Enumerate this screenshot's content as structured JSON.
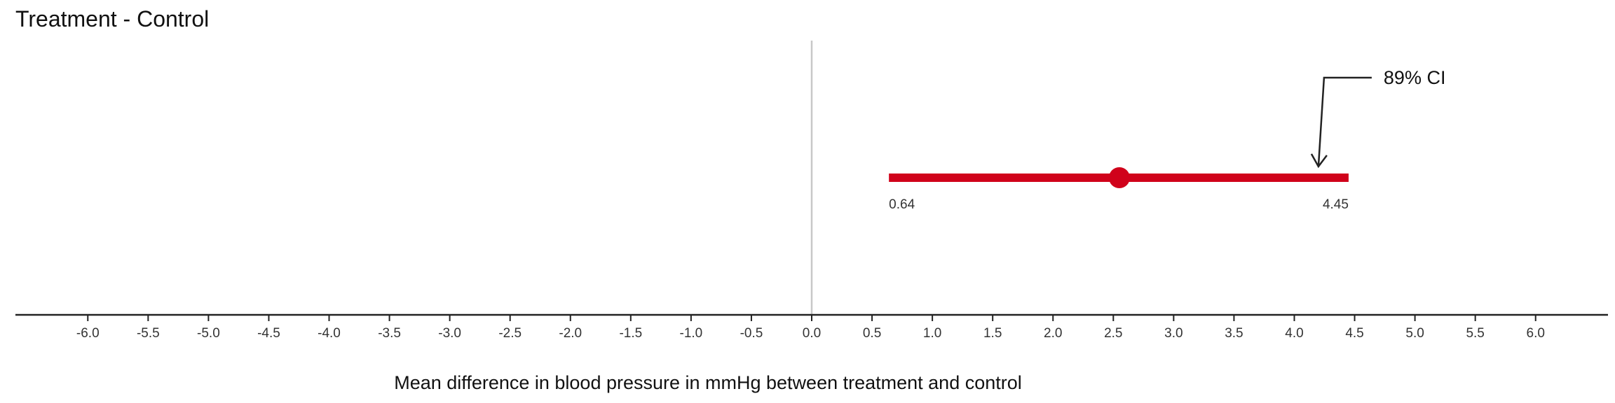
{
  "chart_data": {
    "type": "interval",
    "title": "Treatment - Control",
    "xlabel": "Mean difference in blood pressure in mmHg between treatment and control",
    "ylabel": "",
    "xlim": [
      -6.6,
      6.6
    ],
    "xticks": [
      -6.0,
      -5.5,
      -5.0,
      -4.5,
      -4.0,
      -3.5,
      -3.0,
      -2.5,
      -2.0,
      -1.5,
      -1.0,
      -0.5,
      0.0,
      0.5,
      1.0,
      1.5,
      2.0,
      2.5,
      3.0,
      3.5,
      4.0,
      4.5,
      5.0,
      5.5,
      6.0
    ],
    "xtick_labels": [
      "-6.0",
      "-5.5",
      "-5.0",
      "-4.5",
      "-4.0",
      "-3.5",
      "-3.0",
      "-2.5",
      "-2.0",
      "-1.5",
      "-1.0",
      "-0.5",
      "0.0",
      "0.5",
      "1.0",
      "1.5",
      "2.0",
      "2.5",
      "3.0",
      "3.5",
      "4.0",
      "4.5",
      "5.0",
      "5.5",
      "6.0"
    ],
    "reference_line": 0.0,
    "point_estimate": 2.55,
    "interval": {
      "lower": 0.64,
      "upper": 4.45
    },
    "lower_label": "0.64",
    "upper_label": "4.45",
    "annotation": {
      "text": "89% CI",
      "points_to": 4.2
    },
    "grid": false,
    "colors": {
      "interval": "#d0021b",
      "reference": "#c8c8c8",
      "axis": "#222222",
      "arrow": "#222222"
    }
  }
}
